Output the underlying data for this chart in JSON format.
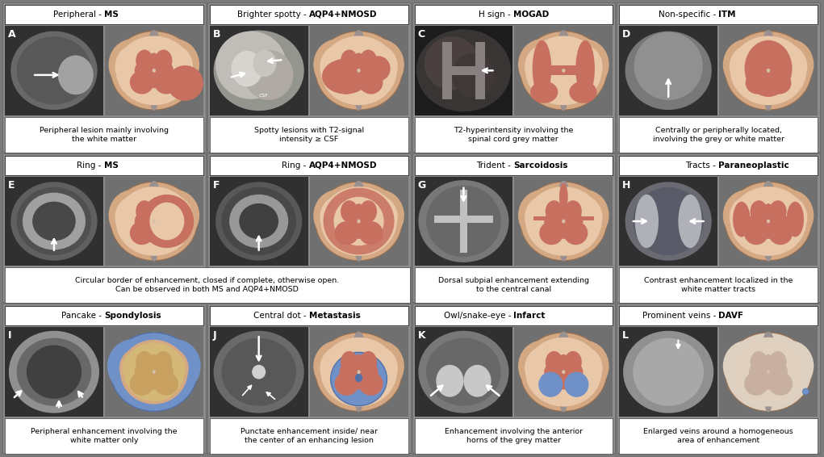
{
  "bg_color": "#7a7a7a",
  "cell_bg": "#8a8a8a",
  "header_bg": "#ffffff",
  "caption_bg": "#ffffff",
  "skin_outer": "#D4A882",
  "skin_inner": "#E8C8A8",
  "gm_color": "#C87060",
  "gm_light": "#D4887A",
  "wm_color": "#D4A882",
  "blue_color": "#7090C8",
  "blue_dark": "#5070A8",
  "blue_light": "#90A8D0",
  "row_headers": [
    [
      "Peripheral - ",
      "MS",
      "Brighter spotty - ",
      "AQP4+NMOSD",
      "H sign - ",
      "MOGAD",
      "Non-specific - ",
      "ITM"
    ],
    [
      "Ring - ",
      "MS",
      "Ring - ",
      "AQP4+NMOSD",
      "Trident - ",
      "Sarcoidosis",
      "Tracts - ",
      "Paraneoplastic"
    ],
    [
      "Pancake - ",
      "Spondylosis",
      "Central dot - ",
      "Metastasis",
      "Owl/snake-eye - ",
      "Infarct",
      "Prominent veins - ",
      "DAVF"
    ]
  ],
  "labels": [
    [
      "A",
      "B",
      "C",
      "D"
    ],
    [
      "E",
      "F",
      "G",
      "H"
    ],
    [
      "I",
      "J",
      "K",
      "L"
    ]
  ],
  "captions": [
    [
      "Peripheral lesion mainly involving\nthe white matter",
      "Spotty lesions with T2-signal\nintensity ≥ CSF",
      "T2-hyperintensity involving the\nspinal cord grey matter",
      "Centrally or peripherally located,\ninvolving the grey or white matter"
    ],
    [
      "Circular border of enhancement, closed if complete, otherwise open.\nCan be observed in both MS and AQP4+NMOSD",
      "",
      "Dorsal subpial enhancement extending\nto the central canal",
      "Contrast enhancement localized in the\nwhite matter tracts"
    ],
    [
      "Peripheral enhancement involving the\nwhite matter only",
      "Punctate enhancement inside/ near\nthe center of an enhancing lesion",
      "Enhancement involving the anterior\nhorns of the grey matter",
      "Enlarged veins around a homogeneous\narea of enhancement"
    ]
  ]
}
